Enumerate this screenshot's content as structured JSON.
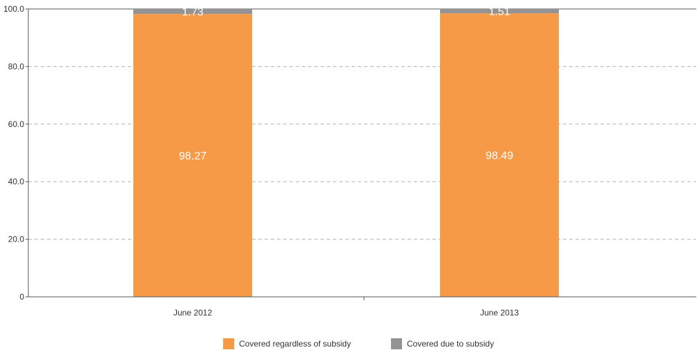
{
  "chart_data": {
    "type": "bar",
    "stacked": true,
    "categories": [
      "June 2012",
      "June 2013"
    ],
    "series": [
      {
        "name": "Covered regardless of subsidy",
        "values": [
          98.27,
          98.49
        ],
        "color": "#f79a47"
      },
      {
        "name": "Covered due to subsidy",
        "values": [
          1.73,
          1.51
        ],
        "color": "#939393"
      }
    ],
    "title": "",
    "xlabel": "",
    "ylabel": "",
    "ylim": [
      0,
      100
    ],
    "yticks": [
      "0",
      "20.0",
      "40.0",
      "60.0",
      "80.0",
      "100.0"
    ],
    "y_tick_values": [
      0,
      20,
      40,
      60,
      80,
      100
    ],
    "data_labels": [
      [
        "98.27",
        "98.49"
      ],
      [
        "1.73",
        "1.51"
      ]
    ],
    "grid": true,
    "grid_style": "dashed",
    "legend_position": "bottom-center"
  }
}
